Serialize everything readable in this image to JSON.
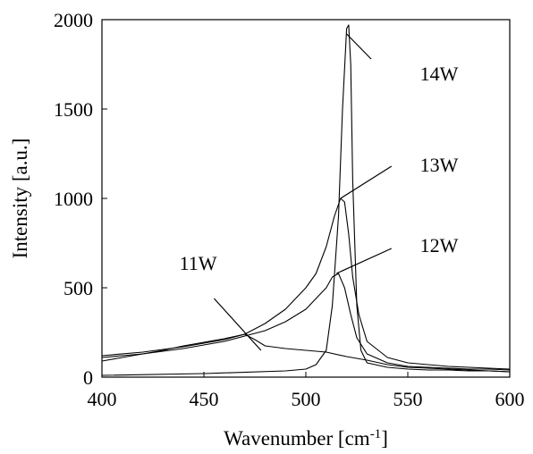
{
  "chart_data": {
    "type": "line",
    "title": "",
    "xlabel": "Wavenumber [cm",
    "xlabel_sup": "-1",
    "xlabel_end": "]",
    "ylabel": "Intensity [a.u.]",
    "xlim": [
      400,
      600
    ],
    "ylim": [
      0,
      2000
    ],
    "xticks": [
      "400",
      "450",
      "500",
      "550",
      "600"
    ],
    "yticks": [
      "0",
      "500",
      "1000",
      "1500",
      "2000"
    ],
    "xtick_values": [
      400,
      450,
      500,
      550,
      600
    ],
    "ytick_values": [
      0,
      500,
      1000,
      1500,
      2000
    ],
    "grid": false,
    "legend": "none",
    "series": [
      {
        "name": "11W",
        "x": [
          400,
          410,
          420,
          430,
          440,
          450,
          460,
          470,
          475,
          480,
          490,
          500,
          510,
          520,
          530,
          540,
          550,
          560,
          570,
          580,
          590,
          600
        ],
        "y": [
          90,
          110,
          130,
          150,
          175,
          195,
          215,
          240,
          210,
          175,
          160,
          150,
          140,
          115,
          95,
          70,
          55,
          50,
          45,
          40,
          35,
          30
        ]
      },
      {
        "name": "12W",
        "x": [
          400,
          420,
          440,
          460,
          480,
          490,
          500,
          505,
          510,
          513,
          516,
          519,
          522,
          525,
          530,
          540,
          550,
          560,
          570,
          580,
          590,
          600
        ],
        "y": [
          110,
          130,
          160,
          200,
          260,
          310,
          380,
          440,
          500,
          560,
          580,
          500,
          350,
          220,
          130,
          80,
          60,
          55,
          50,
          45,
          45,
          40
        ]
      },
      {
        "name": "13W",
        "x": [
          400,
          420,
          440,
          460,
          470,
          480,
          490,
          500,
          505,
          510,
          514,
          517,
          519,
          521,
          523,
          526,
          530,
          540,
          550,
          560,
          570,
          580,
          590,
          600
        ],
        "y": [
          120,
          140,
          170,
          210,
          240,
          300,
          380,
          500,
          580,
          730,
          900,
          1000,
          980,
          800,
          560,
          350,
          200,
          110,
          80,
          70,
          60,
          55,
          50,
          45
        ]
      },
      {
        "name": "14W",
        "x": [
          400,
          450,
          490,
          500,
          505,
          510,
          513,
          516,
          518,
          520,
          521,
          522,
          523,
          525,
          527,
          530,
          540,
          550,
          560,
          570,
          580,
          590,
          600
        ],
        "y": [
          10,
          20,
          35,
          45,
          70,
          150,
          400,
          900,
          1500,
          1950,
          1970,
          1750,
          1100,
          400,
          150,
          80,
          55,
          45,
          40,
          40,
          35,
          35,
          30
        ]
      }
    ],
    "callouts": [
      {
        "label": "14W",
        "point": [
          520,
          1920
        ],
        "elbow": [
          532,
          1780
        ],
        "text": [
          556,
          1700
        ]
      },
      {
        "label": "13W",
        "point": [
          517,
          1000
        ],
        "elbow": [
          542,
          1180
        ],
        "text": [
          556,
          1190
        ]
      },
      {
        "label": "12W",
        "point": [
          515,
          580
        ],
        "elbow": [
          542,
          720
        ],
        "text": [
          556,
          740
        ]
      },
      {
        "label": "11W",
        "point": [
          478,
          150
        ],
        "elbow": [
          455,
          440
        ],
        "text": [
          438,
          640
        ]
      }
    ]
  }
}
